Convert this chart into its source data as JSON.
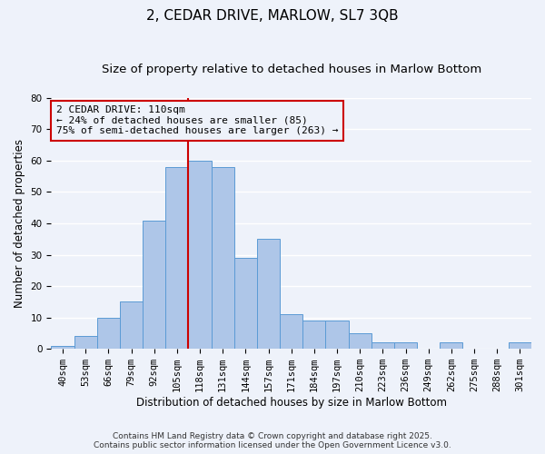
{
  "title": "2, CEDAR DRIVE, MARLOW, SL7 3QB",
  "subtitle": "Size of property relative to detached houses in Marlow Bottom",
  "xlabel": "Distribution of detached houses by size in Marlow Bottom",
  "ylabel": "Number of detached properties",
  "categories": [
    "40sqm",
    "53sqm",
    "66sqm",
    "79sqm",
    "92sqm",
    "105sqm",
    "118sqm",
    "131sqm",
    "144sqm",
    "157sqm",
    "171sqm",
    "184sqm",
    "197sqm",
    "210sqm",
    "223sqm",
    "236sqm",
    "249sqm",
    "262sqm",
    "275sqm",
    "288sqm",
    "301sqm"
  ],
  "values": [
    1,
    4,
    10,
    15,
    41,
    58,
    60,
    58,
    29,
    35,
    11,
    9,
    9,
    5,
    2,
    2,
    0,
    2,
    0,
    0,
    2
  ],
  "bar_color": "#aec6e8",
  "bar_edge_color": "#5b9bd5",
  "annotation_title": "2 CEDAR DRIVE: 110sqm",
  "annotation_line1": "← 24% of detached houses are smaller (85)",
  "annotation_line2": "75% of semi-detached houses are larger (263) →",
  "vline_color": "#cc0000",
  "ylim": [
    0,
    80
  ],
  "yticks": [
    0,
    10,
    20,
    30,
    40,
    50,
    60,
    70,
    80
  ],
  "footnote1": "Contains HM Land Registry data © Crown copyright and database right 2025.",
  "footnote2": "Contains public sector information licensed under the Open Government Licence v3.0.",
  "background_color": "#eef2fa",
  "grid_color": "#ffffff",
  "title_fontsize": 11,
  "subtitle_fontsize": 9.5,
  "axis_label_fontsize": 8.5,
  "tick_fontsize": 7.5,
  "annotation_fontsize": 8,
  "footnote_fontsize": 6.5
}
